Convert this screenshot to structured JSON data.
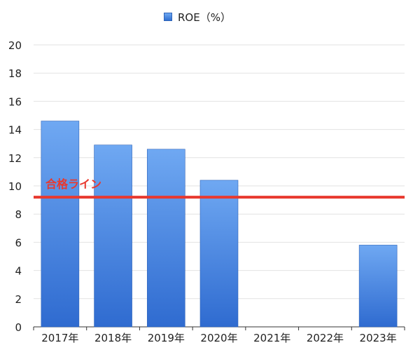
{
  "chart_data": {
    "type": "bar",
    "categories": [
      "2017年",
      "2018年",
      "2019年",
      "2020年",
      "2021年",
      "2022年",
      "2023年"
    ],
    "series": [
      {
        "name": "ROE（%）",
        "values": [
          14.6,
          12.9,
          12.6,
          10.4,
          null,
          null,
          5.8
        ]
      }
    ],
    "xlabel": "",
    "ylabel": "",
    "ylim": [
      0,
      20
    ],
    "yticks": [
      0,
      2,
      4,
      6,
      8,
      10,
      12,
      14,
      16,
      18,
      20
    ],
    "grid": true,
    "legend_position": "top-center",
    "reference_line": {
      "value": 9.2,
      "label": "合格ライン",
      "color": "#e8392f"
    },
    "colors": {
      "bar_top": "#6fa8f2",
      "bar_bottom": "#2f6bd0",
      "grid": "#e2e2e2",
      "axis": "#333333"
    }
  }
}
